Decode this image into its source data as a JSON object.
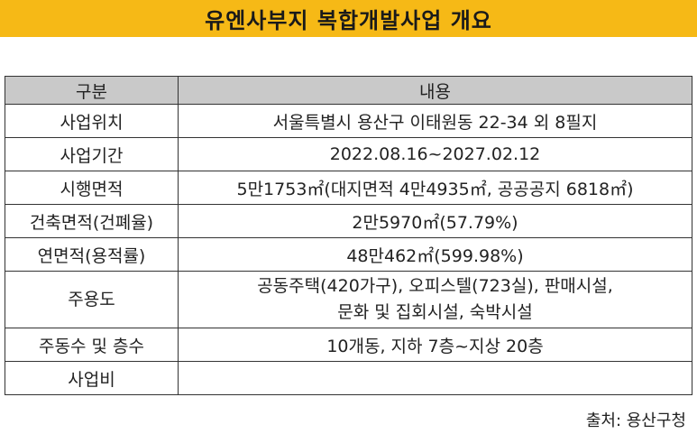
{
  "title": "유엔사부지 복합개발사업 개요",
  "table": {
    "headers": [
      "구분",
      "내용"
    ],
    "rows": [
      {
        "label": "사업위치",
        "lines": [
          "서울특별시 용산구 이태원동 22-34 외 8필지"
        ]
      },
      {
        "label": "사업기간",
        "lines": [
          "2022.08.16~2027.02.12"
        ]
      },
      {
        "label": "시행면적",
        "lines": [
          "5만1753㎡(대지면적 4만4935㎡, 공공공지 6818㎡)"
        ]
      },
      {
        "label": "건축면적(건폐율)",
        "lines": [
          "2만5970㎡(57.79%)"
        ]
      },
      {
        "label": "연면적(용적률)",
        "lines": [
          "48만462㎡(599.98%)"
        ]
      },
      {
        "label": "주용도",
        "lines": [
          "공동주택(420가구), 오피스텔(723실), 판매시설,",
          "문화 및 집회시설, 숙박시설"
        ]
      },
      {
        "label": "주동수 및 층수",
        "lines": [
          "10개동, 지하 7층~지상 20층"
        ]
      },
      {
        "label": "사업비",
        "lines": [
          ""
        ]
      }
    ]
  },
  "source": "출처: 용산구청"
}
